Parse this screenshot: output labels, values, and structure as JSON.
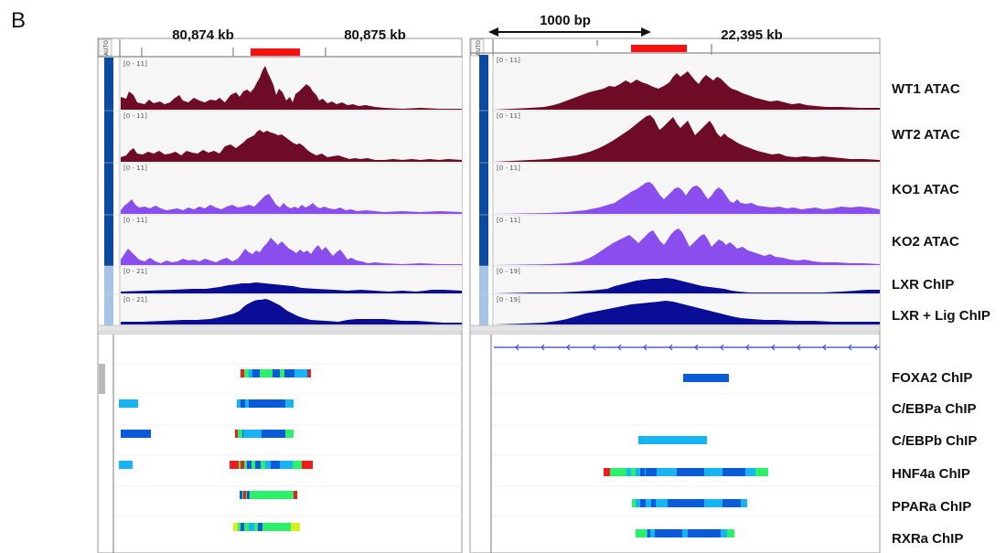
{
  "figure": {
    "panel_letter": "B",
    "scale_bar_label": "1000 bp",
    "autoscale_label": "AUTO"
  },
  "colors": {
    "wt": "#6e0b27",
    "ko": "#8a4dee",
    "chip": "#0a0d96",
    "sidebar_dark": "#0b4a9e",
    "sidebar_light": "#a7c4e6",
    "region_marker": "#ff1010",
    "feature_blue": "#0a5bd9",
    "feature_light": "#17b4f4",
    "feature_green": "#2af06a",
    "feature_red": "#ee1c1c",
    "feature_yellow": "#d6f01e"
  },
  "left_panel": {
    "coords": [
      "80,874 kb",
      "80,875 kb"
    ],
    "ranges": [
      "[0 - 11]",
      "[0 - 11]",
      "[0 - 11]",
      "[0 - 11]",
      "[0 - 21]",
      "[0 - 21]"
    ]
  },
  "right_panel": {
    "coords": [
      "22,395 kb"
    ],
    "ranges": [
      "[0 - 11]",
      "[0 - 11]",
      "[0 - 11]",
      "[0 - 11]",
      "[0 - 19]",
      "[0 - 19]"
    ]
  },
  "track_labels": [
    "WT1 ATAC",
    "WT2 ATAC",
    "KO1 ATAC",
    "KO2 ATAC",
    "LXR ChIP",
    "LXR + Lig ChIP"
  ],
  "feature_labels": [
    "FOXA2 ChIP",
    "C/EBPa ChIP",
    "C/EBPb ChIP",
    "HNF4a ChIP",
    "PPARa ChIP",
    "RXRa ChIP"
  ]
}
